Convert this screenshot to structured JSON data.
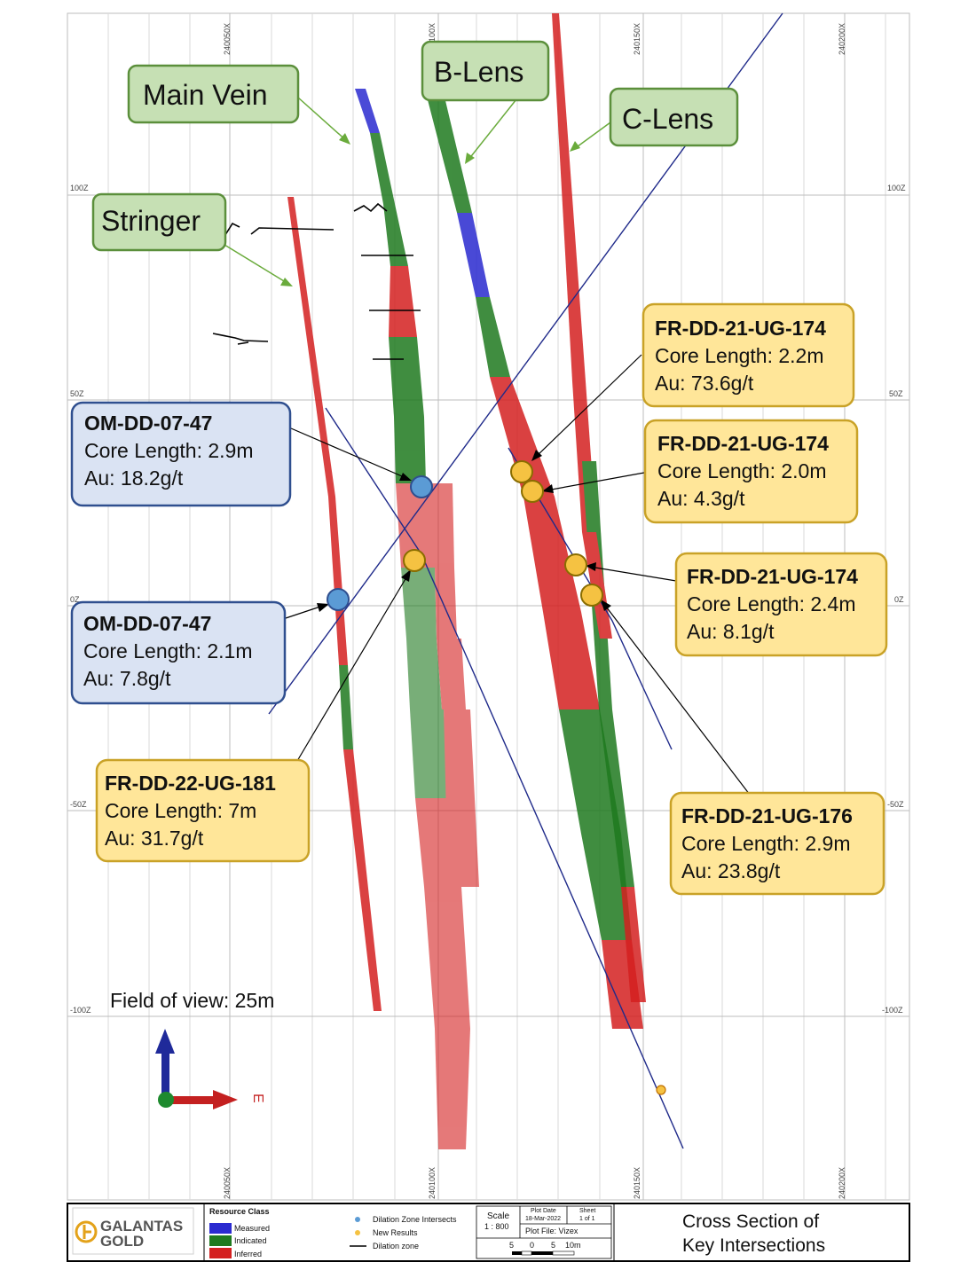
{
  "grid": {
    "x_labels": [
      "240050X",
      "240100X",
      "240150X",
      "240200X"
    ],
    "z_labels": [
      "100Z",
      "50Z",
      "0Z",
      "-50Z",
      "-100Z"
    ]
  },
  "lens_labels": [
    "Main Vein",
    "B-Lens",
    "C-Lens",
    "Stringer"
  ],
  "intercepts": [
    {
      "hole": "OM-DD-07-47",
      "core": "Core Length: 2.9m",
      "au": "Au: 18.2g/t",
      "type": "Dilation Zone Intersects"
    },
    {
      "hole": "OM-DD-07-47",
      "core": "Core Length: 2.1m",
      "au": "Au: 7.8g/t",
      "type": "Dilation Zone Intersects"
    },
    {
      "hole": "FR-DD-22-UG-181",
      "core": "Core Length: 7m",
      "au": "Au: 31.7g/t",
      "type": "New Results"
    },
    {
      "hole": "FR-DD-21-UG-174",
      "core": "Core Length: 2.2m",
      "au": "Au: 73.6g/t",
      "type": "New Results"
    },
    {
      "hole": "FR-DD-21-UG-174",
      "core": "Core Length: 2.0m",
      "au": "Au: 4.3g/t",
      "type": "New Results"
    },
    {
      "hole": "FR-DD-21-UG-174",
      "core": "Core Length: 2.4m",
      "au": "Au: 8.1g/t",
      "type": "New Results"
    },
    {
      "hole": "FR-DD-21-UG-176",
      "core": "Core Length: 2.9m",
      "au": "Au: 23.8g/t",
      "type": "New Results"
    }
  ],
  "field_of_view": "Field of view: 25m",
  "compass_label": "E",
  "colors": {
    "measured": "#2a2ad0",
    "indicated": "#1f7a1f",
    "inferred": "#d42020",
    "dilation_intersect": "#5b9bd5",
    "new_result": "#f5c242",
    "dilation_zone": "#000000"
  },
  "footer": {
    "logo_line1": "GALANTAS",
    "logo_line2": "GOLD",
    "resource_class_title": "Resource Class",
    "resource_classes": [
      "Measured",
      "Indicated",
      "Inferred"
    ],
    "symbols": [
      "Dilation Zone Intersects",
      "New Results",
      "Dilation zone"
    ],
    "scale_label": "Scale",
    "scale_value": "1 : 800",
    "plot_date_label": "Plot Date",
    "plot_date_value": "18-Mar-2022",
    "sheet_label": "Sheet",
    "sheet_value": "1 of 1",
    "plot_file": "Plot File: Vizex",
    "scale_ticks": [
      "5",
      "0",
      "5",
      "10m"
    ],
    "title_line1": "Cross Section of",
    "title_line2": "Key Intersections"
  }
}
